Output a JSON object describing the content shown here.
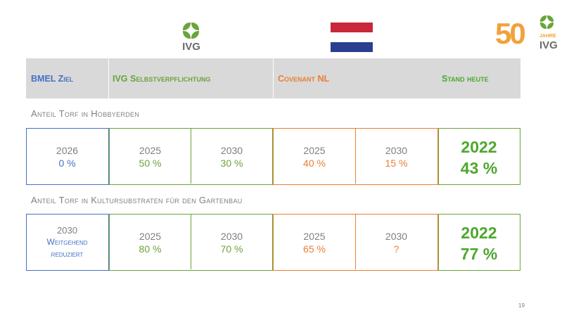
{
  "logos": {
    "ivg": "IVG",
    "anniversary_number": "50",
    "anniversary_word": "JAHRE",
    "anniversary_ivg": "IVG"
  },
  "colors": {
    "blue": "#4472c4",
    "green": "#6aa43a",
    "orange": "#ed7d31",
    "header_bg": "#d9d9d9",
    "flag_red": "#c8283a",
    "flag_blue": "#2a3f8f"
  },
  "header": {
    "bmel": "BMEL Ziel",
    "ivg": "IVG Selbstverpflichtung",
    "covenant": "Covenant NL",
    "stand": "Stand heute"
  },
  "section1": {
    "title": "Anteil Torf in Hobbyerden",
    "bmel_year": "2026",
    "bmel_value": "0 %",
    "ivg1_year": "2025",
    "ivg1_value": "50 %",
    "ivg2_year": "2030",
    "ivg2_value": "30 %",
    "nl1_year": "2025",
    "nl1_value": "40 %",
    "nl2_year": "2030",
    "nl2_value": "15 %",
    "stand_year": "2022",
    "stand_value": "43 %"
  },
  "section2": {
    "title": "Anteil Torf in Kultursubstraten für den Gartenbau",
    "bmel_year": "2030",
    "bmel_value_line1": "Weitgehend",
    "bmel_value_line2": "reduziert",
    "ivg1_year": "2025",
    "ivg1_value": "80 %",
    "ivg2_year": "2030",
    "ivg2_value": "70 %",
    "nl1_year": "2025",
    "nl1_value": "65 %",
    "nl2_year": "2030",
    "nl2_value": "?",
    "stand_year": "2022",
    "stand_value": "77 %"
  },
  "page_number": "19"
}
